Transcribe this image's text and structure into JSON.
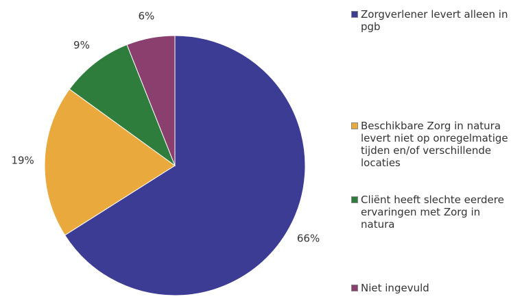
{
  "chart_data": {
    "type": "pie",
    "categories": [
      "Zorgverlener levert alleen in pgb",
      "Beschikbare Zorg in natura levert niet op onregelmatige tijden en/of verschillende locaties",
      "Cliënt heeft slechte eerdere ervaringen met Zorg in natura",
      "Niet ingevuld"
    ],
    "values": [
      66,
      19,
      9,
      6
    ],
    "value_labels": [
      "66%",
      "19%",
      "9%",
      "6%"
    ],
    "colors": [
      "#3c3c94",
      "#e9a93c",
      "#2f7d3c",
      "#8b3f6f"
    ]
  }
}
